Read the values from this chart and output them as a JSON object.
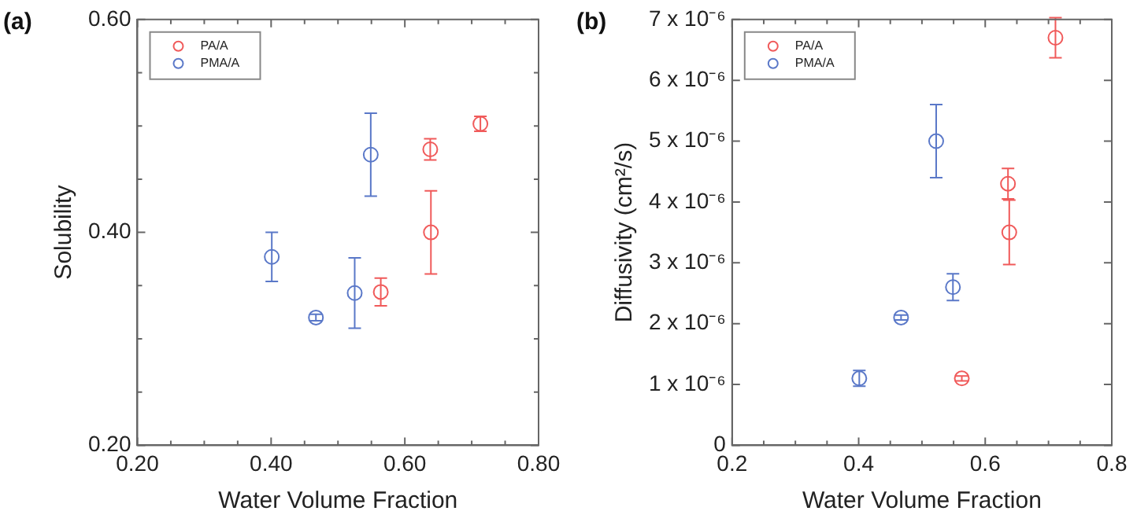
{
  "chart_data": [
    {
      "type": "scatter",
      "title": "(a)",
      "xlabel": "Water Volume Fraction",
      "ylabel": "Solubility",
      "xlim": [
        0.2,
        0.8
      ],
      "ylim": [
        0.2,
        0.6
      ],
      "xticks": [
        {
          "value": 0.2,
          "label": "0.20"
        },
        {
          "value": 0.25,
          "label": null
        },
        {
          "value": 0.3,
          "label": null
        },
        {
          "value": 0.35,
          "label": null
        },
        {
          "value": 0.4,
          "label": "0.40"
        },
        {
          "value": 0.45,
          "label": null
        },
        {
          "value": 0.5,
          "label": null
        },
        {
          "value": 0.55,
          "label": null
        },
        {
          "value": 0.6,
          "label": "0.60"
        },
        {
          "value": 0.65,
          "label": null
        },
        {
          "value": 0.7,
          "label": null
        },
        {
          "value": 0.75,
          "label": null
        },
        {
          "value": 0.8,
          "label": "0.80"
        }
      ],
      "yticks": [
        {
          "value": 0.2,
          "label": "0.20"
        },
        {
          "value": 0.25,
          "label": null
        },
        {
          "value": 0.3,
          "label": null
        },
        {
          "value": 0.35,
          "label": null
        },
        {
          "value": 0.4,
          "label": "0.40"
        },
        {
          "value": 0.45,
          "label": null
        },
        {
          "value": 0.5,
          "label": null
        },
        {
          "value": 0.55,
          "label": null
        },
        {
          "value": 0.6,
          "label": "0.60"
        }
      ],
      "legend": "top left",
      "marker": "circle",
      "series": [
        {
          "name": "PA/A",
          "color": "#f05a5a",
          "x": [
            0.564,
            0.639,
            0.638,
            0.713
          ],
          "values": [
            0.344,
            0.4,
            0.478,
            0.502
          ],
          "errors": [
            0.013,
            0.039,
            0.01,
            0.007
          ]
        },
        {
          "name": "PMA/A",
          "color": "#5a78c8",
          "x": [
            0.401,
            0.467,
            0.525,
            0.549
          ],
          "values": [
            0.377,
            0.32,
            0.343,
            0.473
          ],
          "errors": [
            0.023,
            0.003,
            0.033,
            0.039
          ]
        }
      ]
    },
    {
      "type": "scatter",
      "title": "(b)",
      "xlabel": "Water Volume Fraction",
      "ylabel": "Diffusivity (cm²/s)",
      "xlim": [
        0.2,
        0.8
      ],
      "ylim": [
        0,
        7e-06
      ],
      "xticks": [
        {
          "value": 0.2,
          "label": "0.2"
        },
        {
          "value": 0.25,
          "label": null
        },
        {
          "value": 0.3,
          "label": null
        },
        {
          "value": 0.35,
          "label": null
        },
        {
          "value": 0.4,
          "label": "0.4"
        },
        {
          "value": 0.45,
          "label": null
        },
        {
          "value": 0.5,
          "label": null
        },
        {
          "value": 0.55,
          "label": null
        },
        {
          "value": 0.6,
          "label": "0.6"
        },
        {
          "value": 0.65,
          "label": null
        },
        {
          "value": 0.7,
          "label": null
        },
        {
          "value": 0.75,
          "label": null
        },
        {
          "value": 0.8,
          "label": "0.8"
        }
      ],
      "yticks": [
        {
          "value": 0,
          "label": "0"
        },
        {
          "value": 1e-06,
          "label": "1 x 10⁻⁶"
        },
        {
          "value": 2e-06,
          "label": "2 x 10⁻⁶"
        },
        {
          "value": 3e-06,
          "label": "3 x 10⁻⁶"
        },
        {
          "value": 4e-06,
          "label": "4 x 10⁻⁶"
        },
        {
          "value": 5e-06,
          "label": "5 x 10⁻⁶"
        },
        {
          "value": 6e-06,
          "label": "6 x 10⁻⁶"
        },
        {
          "value": 7e-06,
          "label": "7 x 10⁻⁶"
        }
      ],
      "legend": "top left",
      "marker": "circle",
      "series": [
        {
          "name": "PA/A",
          "color": "#f05a5a",
          "x": [
            0.563,
            0.636,
            0.638,
            0.711
          ],
          "values": [
            1.1e-06,
            4.3e-06,
            3.5e-06,
            6.7e-06
          ],
          "errors": [
            4e-08,
            2.5e-07,
            5.3e-07,
            3.3e-07
          ]
        },
        {
          "name": "PMA/A",
          "color": "#5a78c8",
          "x": [
            0.401,
            0.467,
            0.5225,
            0.549
          ],
          "values": [
            1.1e-06,
            2.1e-06,
            5e-06,
            2.6e-06
          ],
          "errors": [
            1.3e-07,
            4e-08,
            6e-07,
            2.2e-07
          ]
        }
      ]
    }
  ]
}
